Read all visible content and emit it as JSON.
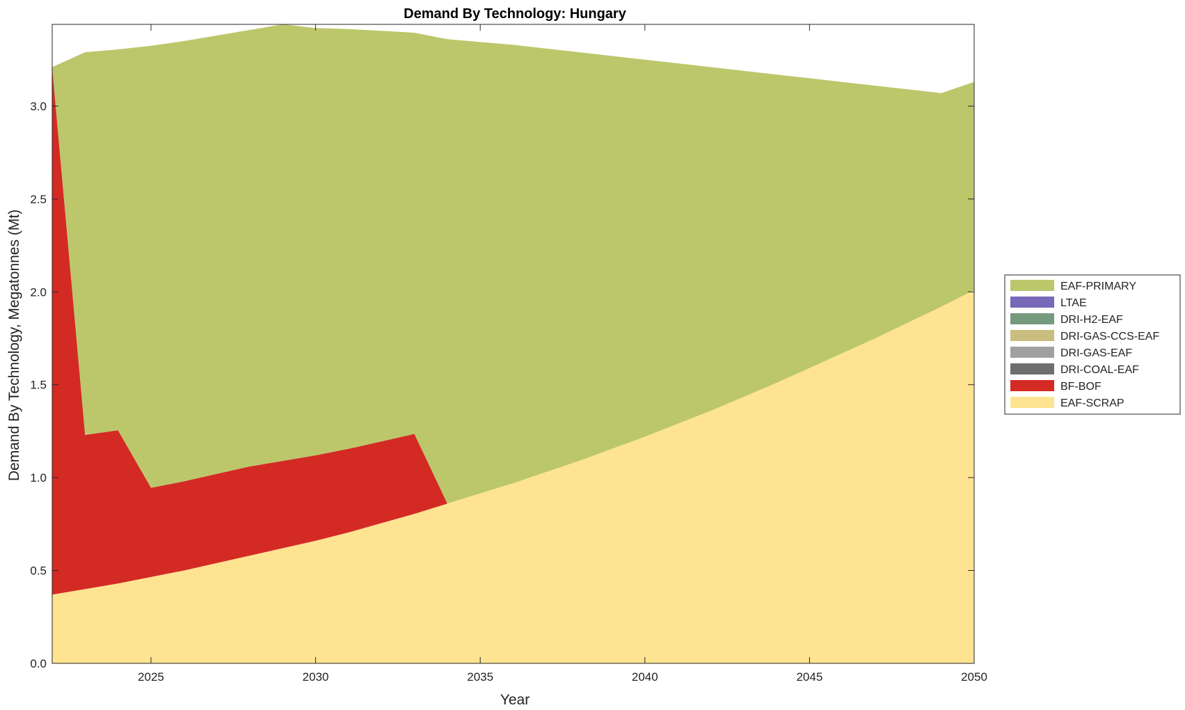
{
  "chart_data": {
    "type": "area",
    "stacked": true,
    "title": "Demand By Technology: Hungary",
    "xlabel": "Year",
    "ylabel": "Demand By Technology, Megatonnes (Mt)",
    "xlim": [
      2022,
      2050
    ],
    "ylim": [
      0,
      3.44
    ],
    "xticks": [
      2025,
      2030,
      2035,
      2040,
      2045,
      2050
    ],
    "yticks": [
      0.0,
      0.5,
      1.0,
      1.5,
      2.0,
      2.5,
      3.0
    ],
    "grid": false,
    "legend_position": "right",
    "x": [
      2022,
      2023,
      2024,
      2025,
      2026,
      2027,
      2028,
      2029,
      2030,
      2031,
      2032,
      2033,
      2034,
      2035,
      2036,
      2037,
      2038,
      2039,
      2040,
      2041,
      2042,
      2043,
      2044,
      2045,
      2046,
      2047,
      2048,
      2049,
      2050
    ],
    "series": [
      {
        "name": "EAF-SCRAP",
        "color": "#FEE391",
        "values": [
          0.37,
          0.4,
          0.43,
          0.465,
          0.5,
          0.54,
          0.58,
          0.62,
          0.66,
          0.705,
          0.755,
          0.805,
          0.86,
          0.915,
          0.97,
          1.03,
          1.09,
          1.155,
          1.22,
          1.29,
          1.36,
          1.435,
          1.51,
          1.59,
          1.67,
          1.75,
          1.835,
          1.92,
          2.01
        ]
      },
      {
        "name": "BF-BOF",
        "color": "#D42A24",
        "values": [
          2.84,
          0.83,
          0.825,
          0.48,
          0.48,
          0.48,
          0.48,
          0.47,
          0.46,
          0.45,
          0.44,
          0.43,
          0,
          0,
          0,
          0,
          0,
          0,
          0,
          0,
          0,
          0,
          0,
          0,
          0,
          0,
          0,
          0,
          0
        ]
      },
      {
        "name": "DRI-COAL-EAF",
        "color": "#6E6E6E",
        "values": [
          0,
          0,
          0,
          0,
          0,
          0,
          0,
          0,
          0,
          0,
          0,
          0,
          0,
          0,
          0,
          0,
          0,
          0,
          0,
          0,
          0,
          0,
          0,
          0,
          0,
          0,
          0,
          0,
          0
        ]
      },
      {
        "name": "DRI-GAS-EAF",
        "color": "#A0A0A0",
        "values": [
          0,
          0,
          0,
          0,
          0,
          0,
          0,
          0,
          0,
          0,
          0,
          0,
          0,
          0,
          0,
          0,
          0,
          0,
          0,
          0,
          0,
          0,
          0,
          0,
          0,
          0,
          0,
          0,
          0
        ]
      },
      {
        "name": "DRI-GAS-CCS-EAF",
        "color": "#C9BE80",
        "values": [
          0,
          0,
          0,
          0,
          0,
          0,
          0,
          0,
          0,
          0,
          0,
          0,
          0,
          0,
          0,
          0,
          0,
          0,
          0,
          0,
          0,
          0,
          0,
          0,
          0,
          0,
          0,
          0,
          0
        ]
      },
      {
        "name": "DRI-H2-EAF",
        "color": "#769A7E",
        "values": [
          0,
          0,
          0,
          0,
          0,
          0,
          0,
          0,
          0,
          0,
          0,
          0,
          0,
          0,
          0,
          0,
          0,
          0,
          0,
          0,
          0,
          0,
          0,
          0,
          0,
          0,
          0,
          0,
          0
        ]
      },
      {
        "name": "LTAE",
        "color": "#7769B8",
        "values": [
          0,
          0,
          0,
          0,
          0,
          0,
          0,
          0,
          0,
          0,
          0,
          0,
          0,
          0,
          0,
          0,
          0,
          0,
          0,
          0,
          0,
          0,
          0,
          0,
          0,
          0,
          0,
          0,
          0
        ]
      },
      {
        "name": "EAF-PRIMARY",
        "color": "#BCC76B",
        "values": [
          0,
          2.06,
          2.05,
          2.38,
          2.37,
          2.36,
          2.35,
          2.35,
          2.3,
          2.26,
          2.21,
          2.16,
          2.5,
          2.43,
          2.36,
          2.28,
          2.2,
          2.115,
          2.03,
          1.94,
          1.85,
          1.755,
          1.66,
          1.56,
          1.46,
          1.36,
          1.255,
          1.15,
          1.12
        ]
      }
    ],
    "legend_order": [
      "EAF-PRIMARY",
      "LTAE",
      "DRI-H2-EAF",
      "DRI-GAS-CCS-EAF",
      "DRI-GAS-EAF",
      "DRI-COAL-EAF",
      "BF-BOF",
      "EAF-SCRAP"
    ]
  }
}
